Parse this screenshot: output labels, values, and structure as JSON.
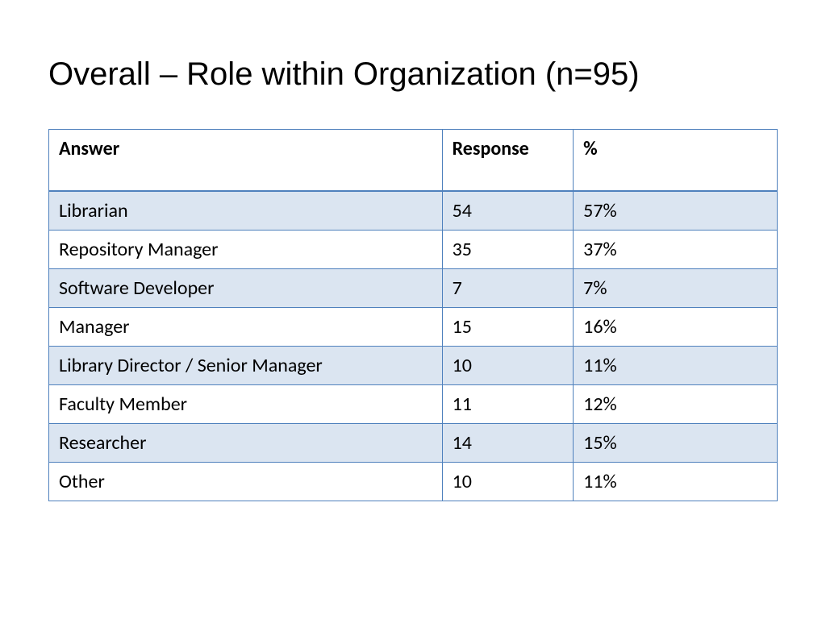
{
  "title": "Overall – Role within Organization (n=95)",
  "table": {
    "type": "table",
    "border_color": "#4f81bd",
    "header_band_color": "#ffffff",
    "row_band_color": "#dbe5f1",
    "row_plain_color": "#ffffff",
    "header_fontsize": 24,
    "cell_fontsize": 24,
    "columns": [
      {
        "label": "Answer",
        "width_pct": 54
      },
      {
        "label": "Response",
        "width_pct": 18
      },
      {
        "label": "%",
        "width_pct": 28
      }
    ],
    "rows": [
      {
        "answer": "Librarian",
        "response": "54",
        "percent": "57%",
        "band": true
      },
      {
        "answer": "Repository Manager",
        "response": "35",
        "percent": "37%",
        "band": false
      },
      {
        "answer": "Software Developer",
        "response": "7",
        "percent": "7%",
        "band": true
      },
      {
        "answer": "Manager",
        "response": "15",
        "percent": "16%",
        "band": false
      },
      {
        "answer": "Library Director / Senior Manager",
        "response": "10",
        "percent": "11%",
        "band": true
      },
      {
        "answer": "Faculty Member",
        "response": "11",
        "percent": "12%",
        "band": false
      },
      {
        "answer": "Researcher",
        "response": "14",
        "percent": "15%",
        "band": true
      },
      {
        "answer": "Other",
        "response": "10",
        "percent": "11%",
        "band": false
      }
    ]
  }
}
